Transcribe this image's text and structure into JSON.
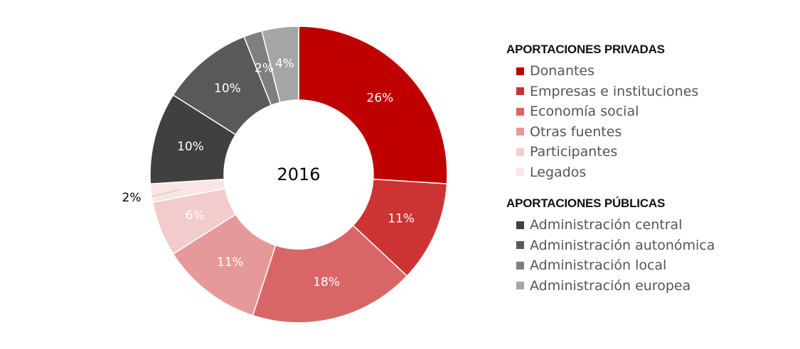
{
  "chart_data": {
    "type": "pie",
    "center_label": "2016",
    "slices": [
      {
        "name": "Donantes",
        "value": 26,
        "label": "26%",
        "color": "#c00000",
        "label_color": "#ffffff"
      },
      {
        "name": "Empresas e instituciones",
        "value": 11,
        "label": "11%",
        "color": "#cc3333",
        "label_color": "#ffffff"
      },
      {
        "name": "Economía social",
        "value": 18,
        "label": "18%",
        "color": "#d96666",
        "label_color": "#ffffff"
      },
      {
        "name": "Otras fuentes",
        "value": 11,
        "label": "11%",
        "color": "#e69999",
        "label_color": "#ffffff"
      },
      {
        "name": "Participantes",
        "value": 6,
        "label": "6%",
        "color": "#f2cccc",
        "label_color": "#ffffff"
      },
      {
        "name": "Legados",
        "value": 2,
        "label": "2%",
        "color": "#f9e5e5",
        "label_color": "#000000"
      },
      {
        "name": "Administración central",
        "value": 10,
        "label": "10%",
        "color": "#404040",
        "label_color": "#ffffff"
      },
      {
        "name": "Administración autonómica",
        "value": 10,
        "label": "10%",
        "color": "#595959",
        "label_color": "#ffffff"
      },
      {
        "name": "Administración local",
        "value": 2,
        "label": "2%",
        "color": "#7f7f7f",
        "label_color": "#ffffff"
      },
      {
        "name": "Administración europea",
        "value": 4,
        "label": "4%",
        "color": "#a6a6a6",
        "label_color": "#ffffff"
      }
    ]
  },
  "legend": {
    "groups": [
      {
        "title": "APORTACIONES PRIVADAS",
        "items": [
          {
            "label": "Donantes",
            "color": "#c00000"
          },
          {
            "label": "Empresas e instituciones",
            "color": "#cc3333"
          },
          {
            "label": "Economía social",
            "color": "#d96666"
          },
          {
            "label": "Otras fuentes",
            "color": "#e69999"
          },
          {
            "label": "Participantes",
            "color": "#f2cccc"
          },
          {
            "label": "Legados",
            "color": "#f9e5e5"
          }
        ]
      },
      {
        "title": "APORTACIONES PÚBLICAS",
        "items": [
          {
            "label": "Administración central",
            "color": "#404040"
          },
          {
            "label": "Administración autonómica",
            "color": "#595959"
          },
          {
            "label": "Administración local",
            "color": "#7f7f7f"
          },
          {
            "label": "Administración europea",
            "color": "#a6a6a6"
          }
        ]
      }
    ]
  }
}
